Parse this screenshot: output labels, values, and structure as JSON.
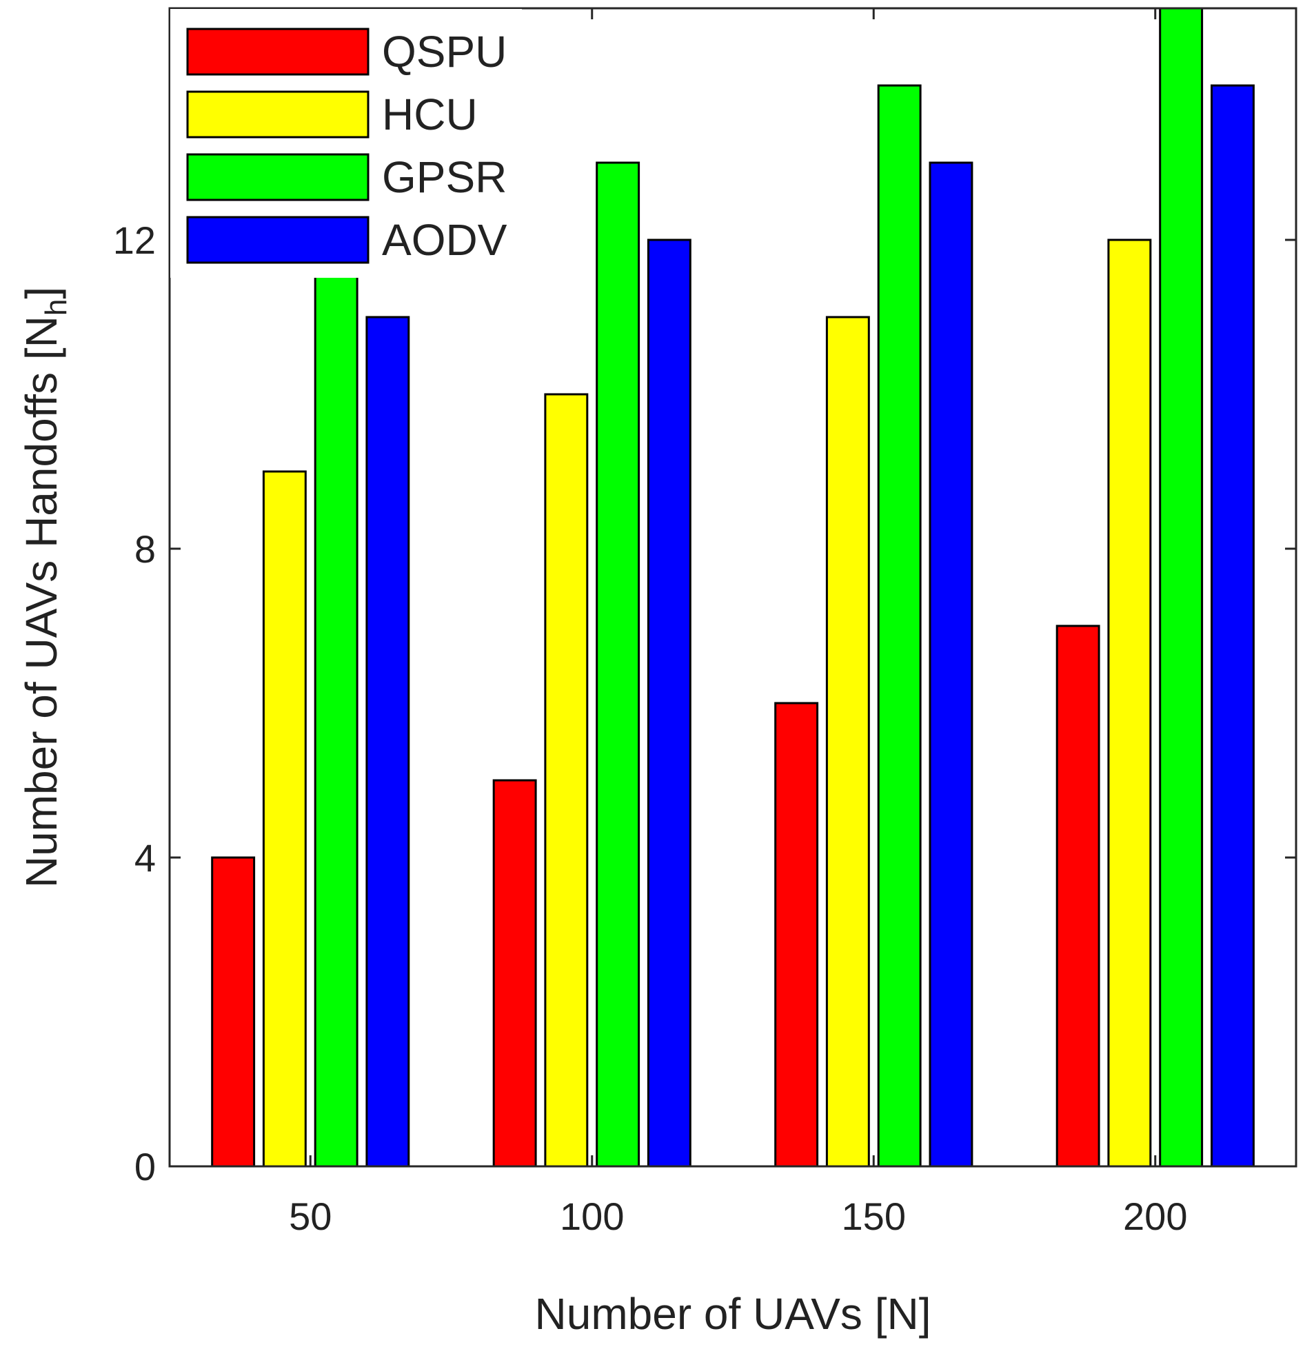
{
  "chart_data": {
    "type": "bar",
    "xlabel": "Number of UAVs [N]",
    "ylabel": "Number of UAVs Handoffs [N",
    "ylabel_subscript": "h",
    "ylabel_suffix": "]",
    "categories": [
      "50",
      "100",
      "150",
      "200"
    ],
    "ylim": [
      0,
      15
    ],
    "yticks": [
      0,
      4,
      8,
      12
    ],
    "grid": false,
    "legend_position": "top-left",
    "series": [
      {
        "name": "QSPU",
        "color": "#ff0000",
        "values": [
          4,
          5,
          6,
          7
        ]
      },
      {
        "name": "HCU",
        "color": "#ffff00",
        "values": [
          9,
          10,
          11,
          12
        ]
      },
      {
        "name": "GPSR",
        "color": "#00ff00",
        "values": [
          12,
          13,
          14,
          15
        ]
      },
      {
        "name": "AODV",
        "color": "#0000ff",
        "values": [
          11,
          12,
          13,
          14
        ]
      }
    ]
  }
}
